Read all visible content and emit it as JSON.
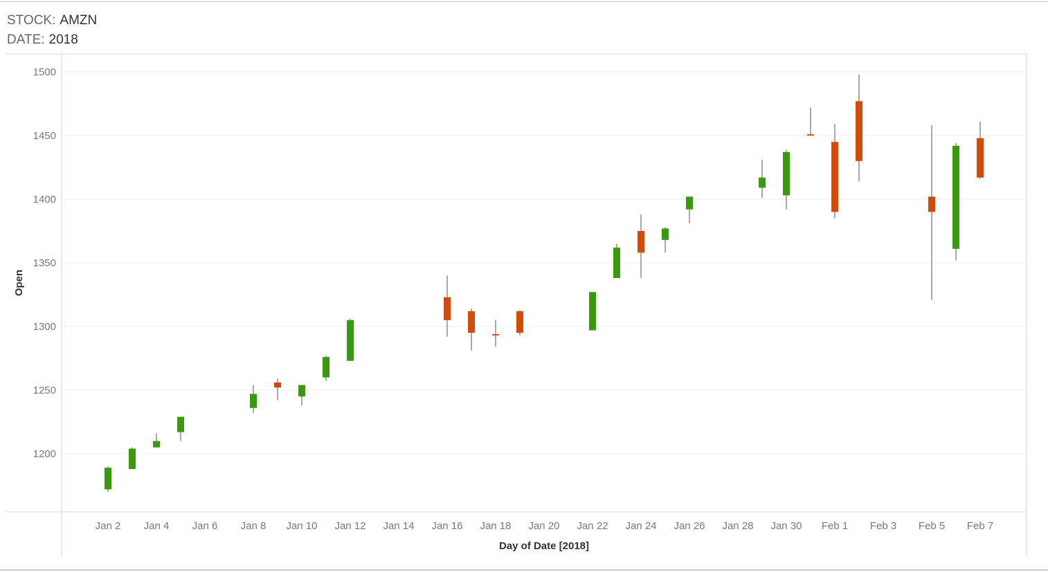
{
  "filters": {
    "stock_label": "STOCK:",
    "stock_value": "AMZN",
    "date_label": "DATE:",
    "date_value": "2018"
  },
  "colors": {
    "up": "#3a9a0d",
    "down": "#d44a08",
    "wick": "#8c8c8c"
  },
  "chart_data": {
    "type": "candlestick",
    "xlabel": "Day of Date [2018]",
    "ylabel": "Open",
    "ylim": [
      1160,
      1505
    ],
    "y_ticks": [
      "1200",
      "1250",
      "1300",
      "1350",
      "1400",
      "1450",
      "1500"
    ],
    "x_ticks": [
      "Jan 2",
      "Jan 4",
      "Jan 6",
      "Jan 8",
      "Jan 10",
      "Jan 12",
      "Jan 14",
      "Jan 16",
      "Jan 18",
      "Jan 20",
      "Jan 22",
      "Jan 24",
      "Jan 26",
      "Jan 28",
      "Jan 30",
      "Feb 1",
      "Feb 3",
      "Feb 5",
      "Feb 7"
    ],
    "grid": true,
    "candles": [
      {
        "date": "Jan 2",
        "open": 1172,
        "high": 1190,
        "low": 1170,
        "close": 1189
      },
      {
        "date": "Jan 3",
        "open": 1188,
        "high": 1205,
        "low": 1188,
        "close": 1204
      },
      {
        "date": "Jan 4",
        "open": 1205,
        "high": 1216,
        "low": 1205,
        "close": 1210
      },
      {
        "date": "Jan 5",
        "open": 1217,
        "high": 1229,
        "low": 1210,
        "close": 1229
      },
      {
        "date": "Jan 8",
        "open": 1236,
        "high": 1254,
        "low": 1232,
        "close": 1247
      },
      {
        "date": "Jan 9",
        "open": 1256,
        "high": 1259,
        "low": 1242,
        "close": 1252
      },
      {
        "date": "Jan 10",
        "open": 1245,
        "high": 1254,
        "low": 1238,
        "close": 1254
      },
      {
        "date": "Jan 11",
        "open": 1260,
        "high": 1277,
        "low": 1257,
        "close": 1276
      },
      {
        "date": "Jan 12",
        "open": 1273,
        "high": 1306,
        "low": 1273,
        "close": 1305
      },
      {
        "date": "Jan 16",
        "open": 1323,
        "high": 1340,
        "low": 1292,
        "close": 1305
      },
      {
        "date": "Jan 17",
        "open": 1312,
        "high": 1314,
        "low": 1281,
        "close": 1295
      },
      {
        "date": "Jan 18",
        "open": 1294,
        "high": 1305,
        "low": 1284,
        "close": 1293
      },
      {
        "date": "Jan 19",
        "open": 1312,
        "high": 1313,
        "low": 1293,
        "close": 1295
      },
      {
        "date": "Jan 22",
        "open": 1297,
        "high": 1327,
        "low": 1297,
        "close": 1327
      },
      {
        "date": "Jan 23",
        "open": 1338,
        "high": 1365,
        "low": 1338,
        "close": 1362
      },
      {
        "date": "Jan 24",
        "open": 1375,
        "high": 1388,
        "low": 1338,
        "close": 1358
      },
      {
        "date": "Jan 25",
        "open": 1368,
        "high": 1378,
        "low": 1358,
        "close": 1377
      },
      {
        "date": "Jan 26",
        "open": 1392,
        "high": 1402,
        "low": 1381,
        "close": 1402
      },
      {
        "date": "Jan 29",
        "open": 1409,
        "high": 1431,
        "low": 1401,
        "close": 1417
      },
      {
        "date": "Jan 30",
        "open": 1403,
        "high": 1439,
        "low": 1392,
        "close": 1437
      },
      {
        "date": "Jan 31",
        "open": 1451,
        "high": 1472,
        "low": 1450,
        "close": 1450
      },
      {
        "date": "Feb 1",
        "open": 1445,
        "high": 1459,
        "low": 1385,
        "close": 1390
      },
      {
        "date": "Feb 2",
        "open": 1477,
        "high": 1498,
        "low": 1414,
        "close": 1430
      },
      {
        "date": "Feb 5",
        "open": 1402,
        "high": 1458,
        "low": 1321,
        "close": 1390
      },
      {
        "date": "Feb 6",
        "open": 1361,
        "high": 1444,
        "low": 1352,
        "close": 1442
      },
      {
        "date": "Feb 7",
        "open": 1448,
        "high": 1461,
        "low": 1416,
        "close": 1417
      }
    ]
  }
}
